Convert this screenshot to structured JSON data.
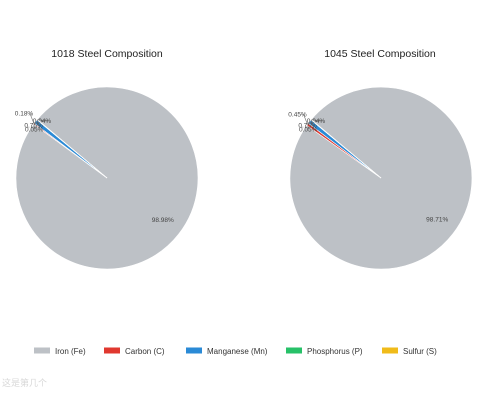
{
  "chart_data": [
    {
      "type": "pie",
      "title": "1018 Steel Composition",
      "slices": [
        {
          "name": "Iron (Fe)",
          "value": 98.98
        },
        {
          "name": "Carbon (C)",
          "value": 0.18
        },
        {
          "name": "Manganese (Mn)",
          "value": 0.75
        },
        {
          "name": "Phosphorus (P)",
          "value": 0.04
        },
        {
          "name": "Sulfur (S)",
          "value": 0.05
        }
      ],
      "labels": [
        "98.98%",
        "0.18%",
        "0.75%",
        "0.04%",
        "0.05%"
      ]
    },
    {
      "type": "pie",
      "title": "1045 Steel Composition",
      "slices": [
        {
          "name": "Iron (Fe)",
          "value": 98.71
        },
        {
          "name": "Carbon (C)",
          "value": 0.45
        },
        {
          "name": "Manganese (Mn)",
          "value": 0.75
        },
        {
          "name": "Phosphorus (P)",
          "value": 0.04
        },
        {
          "name": "Sulfur (S)",
          "value": 0.05
        }
      ],
      "labels": [
        "98.71%",
        "0.45%",
        "0.75%",
        "0.04%",
        "0.05%"
      ]
    }
  ],
  "legend": {
    "position": "bottom",
    "items": [
      {
        "label": "Iron (Fe)",
        "color": "#bdc1c6"
      },
      {
        "label": "Carbon (C)",
        "color": "#e0382f"
      },
      {
        "label": "Manganese (Mn)",
        "color": "#2a8ad6"
      },
      {
        "label": "Phosphorus (P)",
        "color": "#27c168"
      },
      {
        "label": "Sulfur (S)",
        "color": "#f0bb1a"
      }
    ]
  },
  "ghost_text": "这是第几个"
}
